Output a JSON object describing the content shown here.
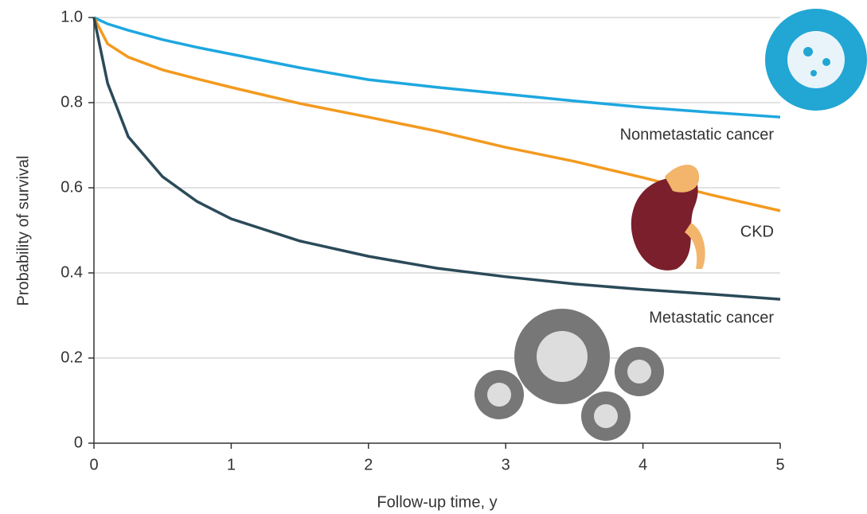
{
  "chart_data": {
    "type": "line",
    "xlabel": "Follow-up time, y",
    "ylabel": "Probability of survival",
    "x": [
      0,
      0.1,
      0.25,
      0.5,
      0.75,
      1,
      1.5,
      2,
      2.5,
      3,
      3.5,
      4,
      4.5,
      5
    ],
    "series": [
      {
        "name": "Nonmetastatic cancer",
        "color": "#1ea7e0",
        "values": [
          1.0,
          0.985,
          0.97,
          0.948,
          0.93,
          0.914,
          0.882,
          0.854,
          0.836,
          0.82,
          0.804,
          0.789,
          0.777,
          0.766
        ]
      },
      {
        "name": "CKD",
        "color": "#f39a1f",
        "values": [
          1.0,
          0.938,
          0.907,
          0.877,
          0.856,
          0.836,
          0.798,
          0.766,
          0.733,
          0.695,
          0.662,
          0.624,
          0.583,
          0.546
        ]
      },
      {
        "name": "Metastatic cancer",
        "color": "#2b4a59",
        "values": [
          1.0,
          0.845,
          0.72,
          0.626,
          0.568,
          0.527,
          0.475,
          0.439,
          0.411,
          0.391,
          0.374,
          0.361,
          0.35,
          0.338
        ]
      }
    ],
    "xlim": [
      0,
      5
    ],
    "xticks": [
      0,
      1,
      2,
      3,
      4,
      5
    ],
    "ylim": [
      0,
      1
    ],
    "yticks": [
      0,
      0.2,
      0.4,
      0.6,
      0.8,
      {
        "value": 1,
        "label": "1.0"
      }
    ],
    "grid": true
  }
}
